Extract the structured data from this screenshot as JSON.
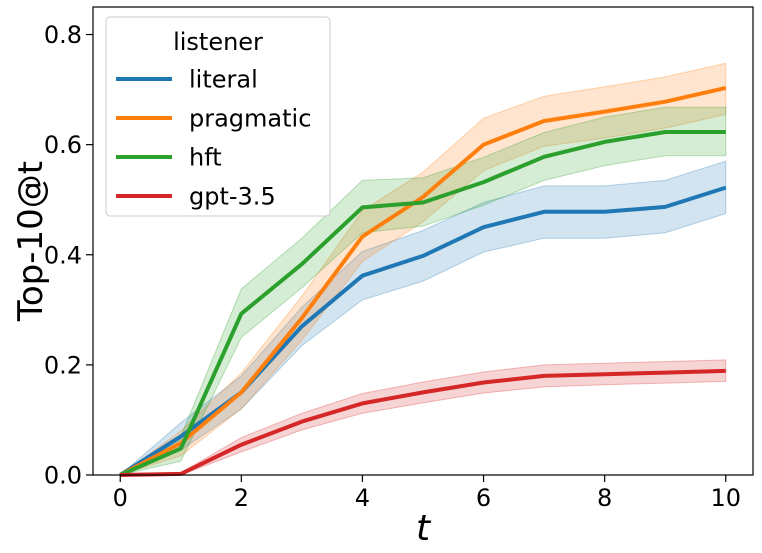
{
  "chart_data": {
    "type": "line",
    "title": "",
    "xlabel": "t",
    "ylabel": "Top-10@t",
    "xlim": [
      -0.45,
      10.45
    ],
    "ylim": [
      0.0,
      0.85
    ],
    "xticks": [
      0,
      2,
      4,
      6,
      8,
      10
    ],
    "xtick_labels": [
      "0",
      "2",
      "4",
      "6",
      "8",
      "10"
    ],
    "yticks": [
      0.0,
      0.2,
      0.4,
      0.6,
      0.8
    ],
    "ytick_labels": [
      "0.0",
      "0.2",
      "0.4",
      "0.6",
      "0.8"
    ],
    "grid": false,
    "legend": {
      "title": "listener",
      "placement": "upper-left"
    },
    "x": [
      0,
      1,
      2,
      3,
      4,
      5,
      6,
      7,
      8,
      9,
      10
    ],
    "series": [
      {
        "name": "literal",
        "color": "#1f77b4",
        "values": [
          0.0,
          0.07,
          0.15,
          0.27,
          0.362,
          0.398,
          0.45,
          0.478,
          0.478,
          0.487,
          0.522
        ],
        "lower": [
          0.0,
          0.045,
          0.12,
          0.235,
          0.318,
          0.352,
          0.405,
          0.43,
          0.43,
          0.44,
          0.475
        ],
        "upper": [
          0.0,
          0.095,
          0.18,
          0.305,
          0.406,
          0.444,
          0.495,
          0.525,
          0.525,
          0.535,
          0.57
        ]
      },
      {
        "name": "pragmatic",
        "color": "#ff7f0e",
        "values": [
          0.0,
          0.058,
          0.15,
          0.285,
          0.433,
          0.505,
          0.6,
          0.643,
          0.66,
          0.678,
          0.703
        ],
        "lower": [
          0.0,
          0.035,
          0.12,
          0.245,
          0.388,
          0.46,
          0.553,
          0.597,
          0.612,
          0.63,
          0.655
        ],
        "upper": [
          0.0,
          0.08,
          0.185,
          0.325,
          0.48,
          0.55,
          0.648,
          0.688,
          0.705,
          0.723,
          0.748
        ]
      },
      {
        "name": "hft",
        "color": "#2ca02c",
        "values": [
          0.0,
          0.048,
          0.293,
          0.383,
          0.486,
          0.495,
          0.532,
          0.578,
          0.605,
          0.623,
          0.623
        ],
        "lower": [
          0.0,
          0.025,
          0.25,
          0.34,
          0.44,
          0.452,
          0.49,
          0.535,
          0.562,
          0.58,
          0.58
        ],
        "upper": [
          0.0,
          0.07,
          0.338,
          0.43,
          0.535,
          0.54,
          0.577,
          0.622,
          0.65,
          0.668,
          0.668
        ]
      },
      {
        "name": "gpt-3.5",
        "color": "#d62728",
        "values": [
          0.0,
          0.002,
          0.055,
          0.097,
          0.13,
          0.15,
          0.168,
          0.18,
          0.183,
          0.186,
          0.189
        ],
        "lower": [
          0.0,
          0.0,
          0.042,
          0.082,
          0.112,
          0.131,
          0.149,
          0.16,
          0.164,
          0.167,
          0.17
        ],
        "upper": [
          0.0,
          0.004,
          0.068,
          0.112,
          0.148,
          0.169,
          0.187,
          0.2,
          0.203,
          0.206,
          0.209
        ]
      }
    ]
  }
}
